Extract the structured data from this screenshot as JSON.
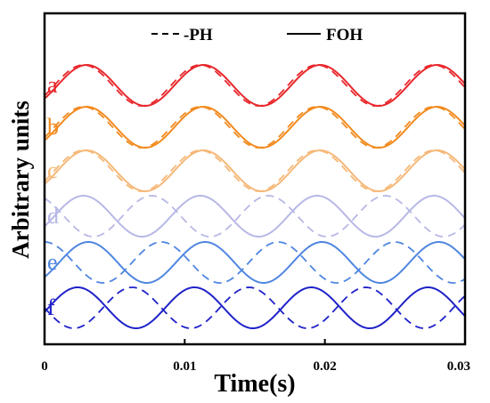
{
  "chart_data": {
    "type": "line",
    "title": "",
    "xlabel": "Time(s)",
    "ylabel": "Arbitrary units",
    "xlim": [
      0,
      0.03
    ],
    "x_ticks": [
      "0",
      "0.01",
      "0.02",
      "0.03"
    ],
    "legend": {
      "placement": "top",
      "entries": [
        {
          "label": "-PH",
          "style": "dashed"
        },
        {
          "label": "FOH",
          "style": "solid"
        }
      ]
    },
    "grid": false,
    "curves": [
      {
        "label": "a",
        "color": "#e8272b",
        "frequency_hz": 120,
        "amplitude": 1.0,
        "solid_phase_deg": -40,
        "dashed_phase_deg": -30
      },
      {
        "label": "b",
        "color": "#f28a1e",
        "frequency_hz": 120,
        "amplitude": 1.0,
        "solid_phase_deg": -40,
        "dashed_phase_deg": -30
      },
      {
        "label": "c",
        "color": "#f6b878",
        "frequency_hz": 120,
        "amplitude": 1.0,
        "solid_phase_deg": -40,
        "dashed_phase_deg": -30
      },
      {
        "label": "d",
        "color": "#b7b8e6",
        "frequency_hz": 120,
        "amplitude": 1.0,
        "solid_phase_deg": -30,
        "dashed_phase_deg": 120
      },
      {
        "label": "e",
        "color": "#4f86e0",
        "frequency_hz": 120,
        "amplitude": 1.0,
        "solid_phase_deg": -45,
        "dashed_phase_deg": 90
      },
      {
        "label": "f",
        "color": "#1f22c8",
        "frequency_hz": 120,
        "amplitude": 1.0,
        "solid_phase_deg": -12,
        "dashed_phase_deg": 180
      }
    ]
  }
}
